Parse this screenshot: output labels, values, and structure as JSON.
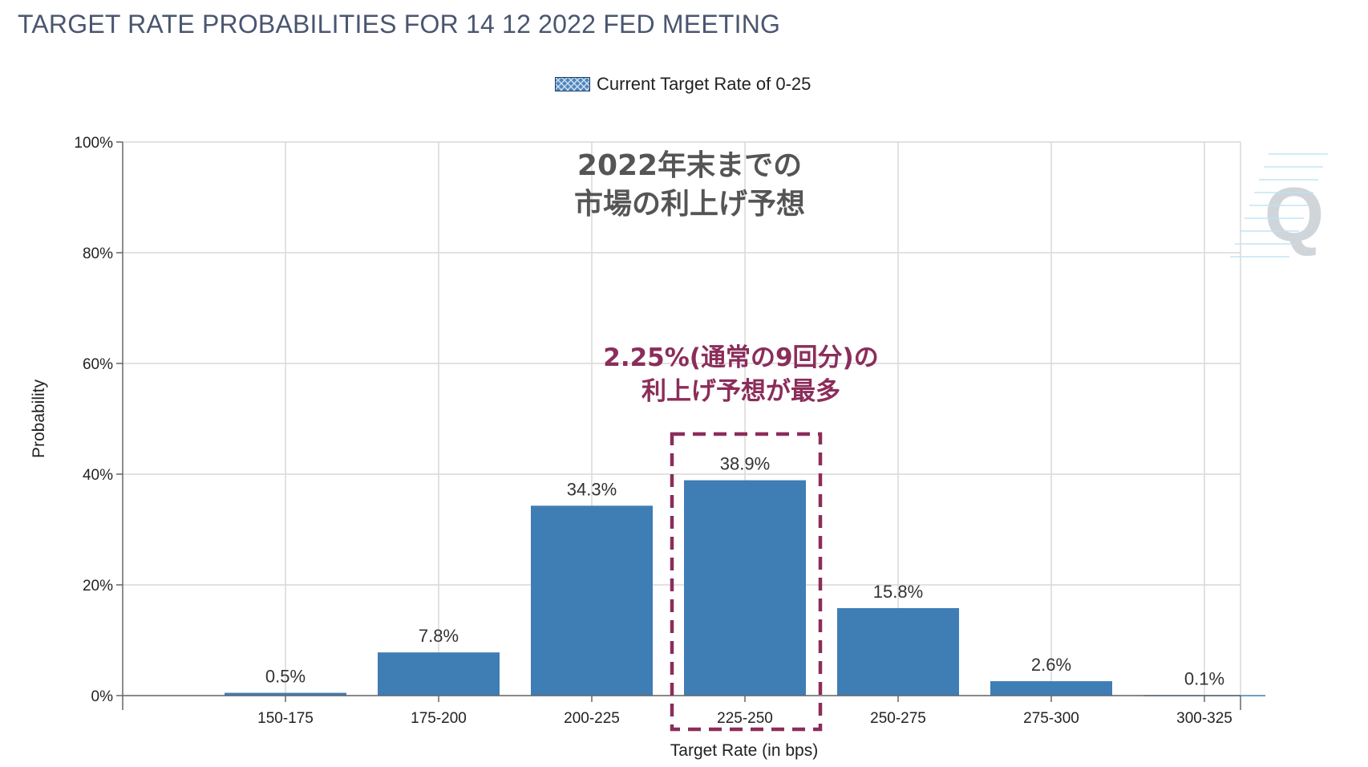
{
  "chart_data": {
    "type": "bar",
    "title": "TARGET RATE PROBABILITIES FOR 14 12 2022 FED MEETING",
    "xlabel": "Target Rate (in bps)",
    "ylabel": "Probability",
    "categories": [
      "150-175",
      "175-200",
      "200-225",
      "225-250",
      "250-275",
      "275-300",
      "300-325"
    ],
    "values": [
      0.5,
      7.8,
      34.3,
      38.9,
      15.8,
      2.6,
      0.1
    ],
    "data_labels": [
      "0.5%",
      "7.8%",
      "34.3%",
      "38.9%",
      "15.8%",
      "2.6%",
      "0.1%"
    ],
    "ylim": [
      0,
      100
    ],
    "yticks": [
      0,
      20,
      40,
      60,
      80,
      100
    ],
    "ytick_labels": [
      "0%",
      "20%",
      "40%",
      "60%",
      "80%",
      "100%"
    ],
    "grid": true,
    "legend": {
      "placement": "top-center",
      "entries": [
        "Current Target Rate of 0-25"
      ]
    },
    "highlight_category": "225-250",
    "annotations": {
      "main": [
        "2022年末までの",
        "市場の利上げ予想"
      ],
      "callout": [
        "2.25%(通常の9回分)の",
        "利上げ予想が最多"
      ]
    },
    "colors": {
      "bar": "#3f7db5",
      "highlight_box": "#8b2d5a",
      "title": "#4a5670",
      "grid": "#d9d9d9",
      "watermark": "#c8ced4"
    },
    "watermark_icon": "q-logo-icon"
  }
}
